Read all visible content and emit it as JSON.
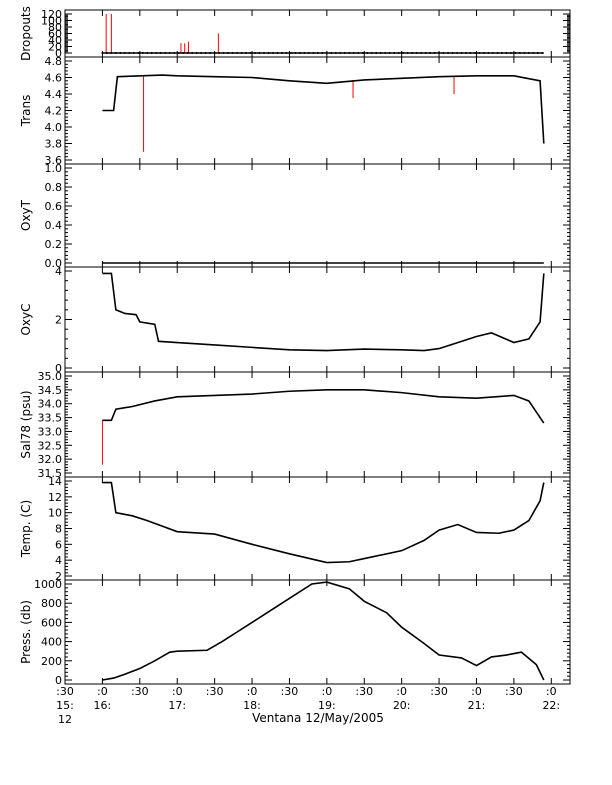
{
  "caption": "Ventana 12/May/2005",
  "chart_data": [
    {
      "type": "line",
      "ylabel": "Dropouts",
      "ylim": [
        0,
        120
      ],
      "yticks": [
        "0",
        "20",
        "40",
        "60",
        "80",
        "100",
        "120"
      ],
      "x": [
        16.0,
        16.05,
        16.12,
        16.13,
        17.05,
        17.1,
        17.15,
        17.55,
        21.9
      ],
      "values": [
        0,
        120,
        0,
        120,
        0,
        30,
        35,
        60,
        0
      ],
      "spikes": [
        [
          16.05,
          120
        ],
        [
          16.12,
          120
        ],
        [
          17.05,
          30
        ],
        [
          17.1,
          30
        ],
        [
          17.15,
          35
        ],
        [
          17.55,
          60
        ]
      ],
      "baseline": 0
    },
    {
      "type": "line",
      "ylabel": "Trans",
      "ylim": [
        3.6,
        4.8
      ],
      "yticks": [
        "3.6",
        "3.8",
        "4.0",
        "4.2",
        "4.4",
        "4.6",
        "4.8"
      ],
      "x": [
        16.0,
        16.15,
        16.2,
        16.8,
        17.0,
        17.5,
        18.0,
        18.5,
        19.0,
        19.5,
        20.0,
        20.5,
        21.0,
        21.5,
        21.85,
        21.9
      ],
      "values": [
        4.2,
        4.2,
        4.61,
        4.63,
        4.62,
        4.61,
        4.6,
        4.56,
        4.53,
        4.57,
        4.59,
        4.61,
        4.62,
        4.62,
        4.56,
        3.8
      ],
      "spikes": [
        [
          16.55,
          3.7
        ],
        [
          19.35,
          4.35
        ],
        [
          20.7,
          4.4
        ]
      ]
    },
    {
      "type": "line",
      "ylabel": "OxyT",
      "ylim": [
        0.0,
        1.0
      ],
      "yticks": [
        "0.0",
        "0.2",
        "0.4",
        "0.6",
        "0.8",
        "1.0"
      ],
      "x": [],
      "values": []
    },
    {
      "type": "line",
      "ylabel": "OxyC",
      "ylim": [
        0,
        4
      ],
      "yticks": [
        "0",
        "2",
        "4"
      ],
      "x": [
        16.0,
        16.12,
        16.18,
        16.3,
        16.45,
        16.5,
        16.7,
        16.75,
        17.0,
        17.5,
        18.0,
        18.5,
        19.0,
        19.5,
        20.0,
        20.3,
        20.5,
        20.8,
        21.0,
        21.2,
        21.5,
        21.7,
        21.85,
        21.9
      ],
      "values": [
        3.9,
        3.9,
        2.4,
        2.25,
        2.2,
        1.9,
        1.8,
        1.1,
        1.05,
        0.95,
        0.85,
        0.75,
        0.72,
        0.78,
        0.75,
        0.72,
        0.8,
        1.1,
        1.3,
        1.45,
        1.05,
        1.2,
        1.9,
        3.9
      ]
    },
    {
      "type": "line",
      "ylabel": "Sal78 (psu)",
      "ylim": [
        31.5,
        35.0
      ],
      "yticks": [
        "31.5",
        "32.0",
        "32.5",
        "33.0",
        "33.5",
        "34.0",
        "34.5",
        "35.0"
      ],
      "x": [
        16.0,
        16.12,
        16.18,
        16.4,
        16.7,
        17.0,
        17.5,
        18.0,
        18.5,
        19.0,
        19.5,
        20.0,
        20.5,
        21.0,
        21.5,
        21.7,
        21.85,
        21.9
      ],
      "values": [
        33.4,
        33.4,
        33.8,
        33.9,
        34.1,
        34.25,
        34.3,
        34.35,
        34.45,
        34.5,
        34.5,
        34.4,
        34.25,
        34.2,
        34.3,
        34.1,
        33.5,
        33.3
      ],
      "spikes": [
        [
          16.0,
          31.8
        ]
      ]
    },
    {
      "type": "line",
      "ylabel": "Temp. (C)",
      "ylim": [
        2,
        14
      ],
      "yticks": [
        "2",
        "4",
        "6",
        "8",
        "10",
        "12",
        "14"
      ],
      "x": [
        16.0,
        16.12,
        16.18,
        16.4,
        16.6,
        17.0,
        17.5,
        18.0,
        18.5,
        19.0,
        19.3,
        19.5,
        20.0,
        20.3,
        20.5,
        20.75,
        21.0,
        21.3,
        21.5,
        21.7,
        21.85,
        21.9
      ],
      "values": [
        13.8,
        13.8,
        10.0,
        9.6,
        9.0,
        7.6,
        7.3,
        6.0,
        4.8,
        3.7,
        3.8,
        4.2,
        5.2,
        6.5,
        7.8,
        8.5,
        7.5,
        7.4,
        7.8,
        9.0,
        11.5,
        13.8
      ]
    },
    {
      "type": "line",
      "ylabel": "Press. (db)",
      "ylim": [
        0,
        1000
      ],
      "yticks": [
        "0",
        "200",
        "400",
        "600",
        "800",
        "1000"
      ],
      "x": [
        16.0,
        16.15,
        16.3,
        16.5,
        16.7,
        16.9,
        17.0,
        17.4,
        17.6,
        17.8,
        18.0,
        18.2,
        18.4,
        18.6,
        18.8,
        19.0,
        19.3,
        19.5,
        19.8,
        20.0,
        20.3,
        20.5,
        20.8,
        21.0,
        21.2,
        21.4,
        21.6,
        21.8,
        21.9
      ],
      "values": [
        0,
        20,
        60,
        120,
        200,
        290,
        300,
        310,
        400,
        500,
        600,
        700,
        800,
        900,
        1000,
        1020,
        950,
        820,
        700,
        550,
        380,
        260,
        230,
        150,
        240,
        260,
        290,
        160,
        0
      ]
    }
  ],
  "x_axis": {
    "xlim": [
      15.5,
      22.25
    ],
    "ticks": [
      {
        "x": 15.5,
        "label": ":30",
        "sub": "15:",
        "sub2": "12"
      },
      {
        "x": 16.0,
        "label": ":0",
        "sub": "16:",
        "sub2": ""
      },
      {
        "x": 16.5,
        "label": ":30",
        "sub": "",
        "sub2": ""
      },
      {
        "x": 17.0,
        "label": ":0",
        "sub": "17:",
        "sub2": ""
      },
      {
        "x": 17.5,
        "label": ":30",
        "sub": "",
        "sub2": ""
      },
      {
        "x": 18.0,
        "label": ":0",
        "sub": "18:",
        "sub2": ""
      },
      {
        "x": 18.5,
        "label": ":30",
        "sub": "",
        "sub2": ""
      },
      {
        "x": 19.0,
        "label": ":0",
        "sub": "19:",
        "sub2": ""
      },
      {
        "x": 19.5,
        "label": ":30",
        "sub": "",
        "sub2": ""
      },
      {
        "x": 20.0,
        "label": ":0",
        "sub": "20:",
        "sub2": ""
      },
      {
        "x": 20.5,
        "label": ":30",
        "sub": "",
        "sub2": ""
      },
      {
        "x": 21.0,
        "label": ":0",
        "sub": "21:",
        "sub2": ""
      },
      {
        "x": 21.5,
        "label": ":30",
        "sub": "",
        "sub2": ""
      },
      {
        "x": 22.0,
        "label": ":0",
        "sub": "22:",
        "sub2": ""
      }
    ]
  },
  "colors": {
    "series": "#000000",
    "raw": "#ff0000"
  }
}
